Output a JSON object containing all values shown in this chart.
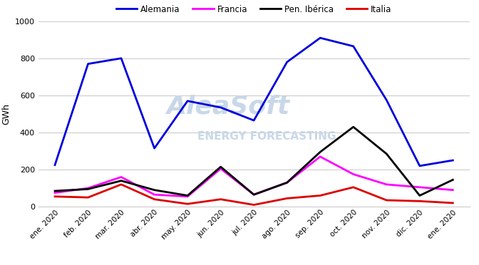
{
  "ylabel": "GWh",
  "ylim": [
    0,
    1000
  ],
  "yticks": [
    0,
    200,
    400,
    600,
    800,
    1000
  ],
  "x_labels": [
    "ene. 2020",
    "feb. 2020",
    "mar. 2020",
    "abr. 2020",
    "may. 2020",
    "jun. 2020",
    "jul. 2020",
    "ago. 2020",
    "sep. 2020",
    "oct. 2020",
    "nov. 2020",
    "dic. 2020",
    "ene. 2020"
  ],
  "series": [
    {
      "name": "Alemania",
      "color": "#0000dd",
      "linewidth": 2.0,
      "values": [
        225,
        770,
        800,
        315,
        570,
        535,
        465,
        780,
        910,
        865,
        575,
        220,
        250
      ]
    },
    {
      "name": "Francia",
      "color": "#ff00ff",
      "linewidth": 2.0,
      "values": [
        75,
        100,
        160,
        65,
        55,
        205,
        65,
        130,
        270,
        175,
        120,
        105,
        90
      ]
    },
    {
      "name": "Pen. Ibérica",
      "color": "#000000",
      "linewidth": 2.0,
      "values": [
        85,
        95,
        140,
        90,
        60,
        215,
        65,
        130,
        295,
        430,
        285,
        60,
        145
      ]
    },
    {
      "name": "Italia",
      "color": "#dd0000",
      "linewidth": 2.0,
      "values": [
        55,
        50,
        120,
        40,
        15,
        40,
        10,
        45,
        60,
        105,
        35,
        30,
        20
      ]
    }
  ],
  "watermark1": "AleaSoft",
  "watermark2": "ENERGY FORECASTING",
  "watermark_color": "#c8d8e8",
  "background_color": "#ffffff",
  "grid_color": "#cccccc"
}
